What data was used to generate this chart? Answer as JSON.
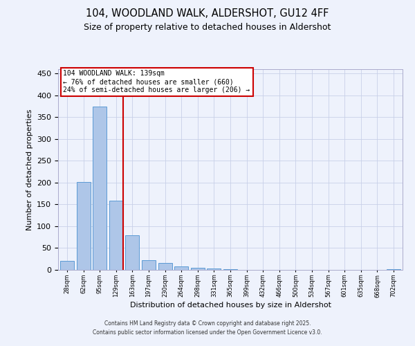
{
  "title": "104, WOODLAND WALK, ALDERSHOT, GU12 4FF",
  "subtitle": "Size of property relative to detached houses in Aldershot",
  "xlabel": "Distribution of detached houses by size in Aldershot",
  "ylabel": "Number of detached properties",
  "bar_labels": [
    "28sqm",
    "62sqm",
    "95sqm",
    "129sqm",
    "163sqm",
    "197sqm",
    "230sqm",
    "264sqm",
    "298sqm",
    "331sqm",
    "365sqm",
    "399sqm",
    "432sqm",
    "466sqm",
    "500sqm",
    "534sqm",
    "567sqm",
    "601sqm",
    "635sqm",
    "668sqm",
    "702sqm"
  ],
  "bar_values": [
    20,
    202,
    374,
    158,
    80,
    23,
    16,
    8,
    5,
    3,
    1,
    0,
    0,
    0,
    0,
    0,
    0,
    0,
    0,
    0,
    2
  ],
  "bar_color": "#aec6e8",
  "bar_edgecolor": "#5b9bd5",
  "vline_color": "#cc0000",
  "vline_bar_index": 3,
  "annotation_line1": "104 WOODLAND WALK: 139sqm",
  "annotation_line2": "← 76% of detached houses are smaller (660)",
  "annotation_line3": "24% of semi-detached houses are larger (206) →",
  "annotation_box_facecolor": "#ffffff",
  "annotation_box_edgecolor": "#cc0000",
  "ylim": [
    0,
    460
  ],
  "yticks": [
    0,
    50,
    100,
    150,
    200,
    250,
    300,
    350,
    400,
    450
  ],
  "background_color": "#eef2fc",
  "grid_color": "#c8d0e8",
  "footer1": "Contains HM Land Registry data © Crown copyright and database right 2025.",
  "footer2": "Contains public sector information licensed under the Open Government Licence v3.0."
}
